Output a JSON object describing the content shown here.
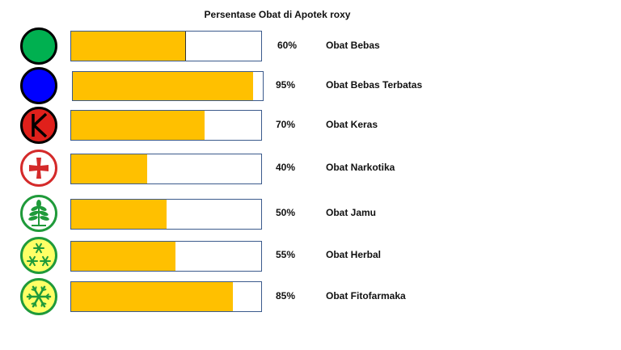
{
  "chart_data": {
    "type": "bar",
    "orientation": "horizontal",
    "title": "Persentase Obat di Apotek roxy",
    "xlabel": "",
    "ylabel": "",
    "xlim": [
      0,
      100
    ],
    "grid": false,
    "legend": "none",
    "categories": [
      "Obat Bebas",
      "Obat Bebas Terbatas",
      "Obat Keras",
      "Obat Narkotika",
      "Obat Jamu",
      "Obat Herbal",
      "Obat Fitofarmaka"
    ],
    "values": [
      60,
      95,
      70,
      40,
      50,
      55,
      85
    ],
    "value_labels": [
      "60%",
      "95%",
      "70%",
      "40%",
      "50%",
      "55%",
      "85%"
    ],
    "bar_color": "#ffc000",
    "bar_border_color": "#3b5a8c",
    "icons": [
      "obat-bebas-icon",
      "obat-bebas-terbatas-icon",
      "obat-keras-icon",
      "obat-narkotika-icon",
      "obat-jamu-icon",
      "obat-herbal-icon",
      "obat-fitofarmaka-icon"
    ]
  }
}
